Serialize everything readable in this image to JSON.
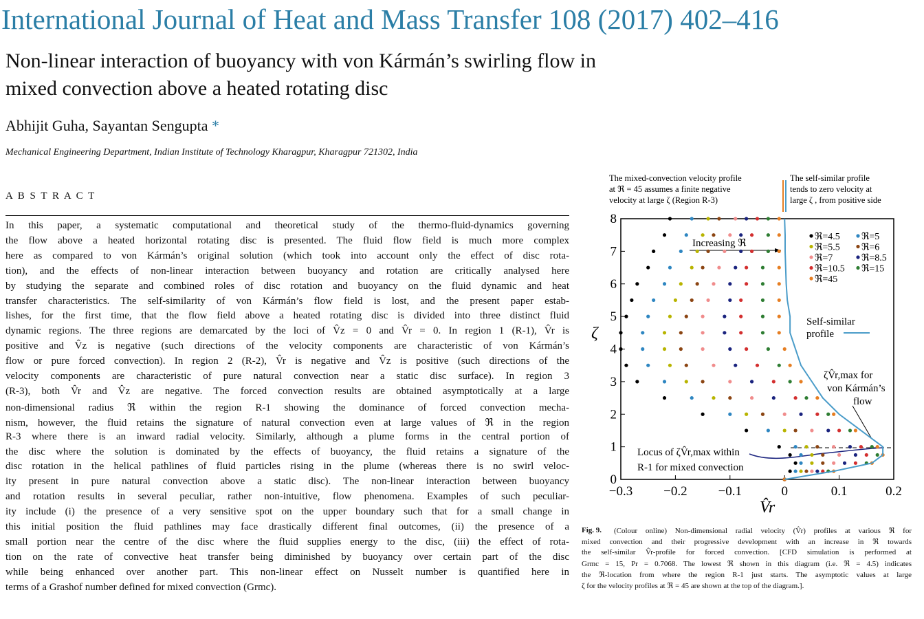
{
  "header": {
    "journal": "International Journal of Heat and Mass Transfer 108 (2017) 402–416",
    "title_lines": [
      "Non-linear interaction of buoyancy with von Kármán’s swirling flow in",
      "mixed convection above a heated rotating disc"
    ],
    "authors": "Abhijit Guha, Sayantan Sengupta",
    "corresponding_mark": "*",
    "affiliation": "Mechanical Engineering Department, Indian Institute of Technology Kharagpur, Kharagpur 721302, India"
  },
  "abstract": {
    "heading": "A B S T R A C T",
    "lines": [
      "In this paper, a systematic computational and theoretical study of the thermo-fluid-dynamics governing",
      "the flow above a heated horizontal rotating disc is presented. The fluid flow field is much more complex",
      "here as compared to von Kármán’s original solution (which took into account only the effect of disc rota-",
      "tion), and the effects of non-linear interaction between buoyancy and rotation are critically analysed here",
      "by studying the separate and combined roles of disc rotation and buoyancy on the fluid dynamic and heat",
      "transfer characteristics. The self-similarity of von Kármán’s flow field is lost, and the present paper estab-",
      "lishes, for the first time, that the flow field above a heated rotating disc is divided into three distinct fluid",
      "dynamic regions. The three regions are demarcated by the loci of V̂z = 0 and V̂r = 0. In region 1 (R-1), V̂r is",
      "positive and V̂z is negative (such directions of the velocity components are characteristic of von Kármán’s",
      "flow or pure forced convection). In region 2 (R-2), V̂r is negative and V̂z is positive (such directions of the",
      "velocity components are characteristic of pure natural convection near a static disc surface). In region 3",
      "(R-3), both V̂r and V̂z are negative. The forced convection results are obtained asymptotically at a large",
      "non-dimensional radius ℜ within the region R-1 showing the dominance of forced convection mecha-",
      "nism, however, the fluid retains the signature of natural convection even at large values of ℜ in the region",
      "R-3 where there is an inward radial velocity. Similarly, although a plume forms in the central portion of",
      "the disc where the solution is dominated by the effects of buoyancy, the fluid retains a signature of the",
      "disc rotation in the helical pathlines of fluid particles rising in the plume (whereas there is no swirl veloc-",
      "ity present in pure natural convection above a static disc). The non-linear interaction between buoyancy",
      "and rotation results in several peculiar, rather non-intuitive, flow phenomena. Examples of such peculiar-",
      "ity include (i) the presence of a very sensitive spot on the upper boundary such that for a small change in",
      "this initial position the fluid pathlines may face drastically different final outcomes, (ii) the presence of a",
      "small portion near the centre of the disc where the fluid supplies energy to the disc, (iii) the effect of rota-",
      "tion on the rate of convective heat transfer being diminished by buoyancy over certain part of the disc",
      "while being enhanced over another part. This non-linear effect on Nusselt number is quantified here in",
      "terms of a Grashof number defined for mixed convection (Grmc)."
    ]
  },
  "figure": {
    "label": "Fig. 9.",
    "caption_lines": [
      "(Colour online) Non-dimensional radial velocity (V̂r) profiles at various ℜ for",
      "mixed convection and their progressive development with an increase in ℜ towards",
      "the self-similar V̂r-profile for forced convection. [CFD simulation is performed at",
      "Grmc = 15, Pr = 0.7068. The lowest ℜ shown in this diagram (i.e. ℜ = 4.5) indicates",
      "the ℜ-location from where the region R-1 just starts. The asymptotic values at large",
      "ζ for the velocity profiles at ℜ = 45 are shown at the top of the diagram.]."
    ],
    "note_left": [
      "The mixed-convection velocity profile",
      "at ℜ = 45 assumes a finite negative",
      "velocity at large ζ   (Region R-3)"
    ],
    "note_right": [
      "The   self-similar   profile",
      "tends  to  zero  velocity  at",
      "large ζ , from positive side"
    ]
  },
  "chart_data": {
    "type": "scatter",
    "x_label": "V̂r",
    "y_label": "ζ",
    "xlim": [
      -0.3,
      0.2
    ],
    "xticks": [
      {
        "value": -0.3,
        "label": "−0.3"
      },
      {
        "value": -0.2,
        "label": "−0.2"
      },
      {
        "value": -0.1,
        "label": "−0.1"
      },
      0,
      0.1,
      0.2
    ],
    "ylim": [
      0,
      8
    ],
    "yticks": [
      0,
      1,
      2,
      3,
      4,
      5,
      6,
      7,
      8
    ],
    "annotations": [
      "Increasing ℜ",
      "ζV̂r,max for",
      "von Kármán’s",
      "flow",
      "Locus of ζV̂r,max within",
      "R-1 for mixed convection"
    ],
    "series": [
      {
        "name": "ℜ=4.5",
        "color": "#000000",
        "marker": "dot",
        "x": [
          0,
          0.01,
          0.02,
          0.01,
          -0.01,
          -0.07,
          -0.15,
          -0.22,
          -0.27,
          -0.29,
          -0.3,
          -0.3,
          -0.29,
          -0.28,
          -0.27,
          -0.25,
          -0.24,
          -0.22,
          -0.21
        ],
        "values": [
          0,
          0.25,
          0.5,
          0.75,
          1,
          1.5,
          2,
          2.5,
          3,
          3.5,
          4,
          4.5,
          5,
          5.5,
          6,
          6.5,
          7,
          7.5,
          8
        ]
      },
      {
        "name": "ℜ=5",
        "color": "#2e86c1",
        "marker": "dot",
        "x": [
          0,
          0.02,
          0.03,
          0.03,
          0.02,
          -0.03,
          -0.1,
          -0.17,
          -0.22,
          -0.25,
          -0.26,
          -0.26,
          -0.25,
          -0.24,
          -0.22,
          -0.21,
          -0.19,
          -0.18,
          -0.17
        ],
        "values": [
          0,
          0.25,
          0.5,
          0.75,
          1,
          1.5,
          2,
          2.5,
          3,
          3.5,
          4,
          4.5,
          5,
          5.5,
          6,
          6.5,
          7,
          7.5,
          8
        ]
      },
      {
        "name": "ℜ=5.5",
        "color": "#b8b400",
        "marker": "dot",
        "x": [
          0,
          0.03,
          0.05,
          0.05,
          0.04,
          0,
          -0.07,
          -0.13,
          -0.18,
          -0.21,
          -0.22,
          -0.22,
          -0.21,
          -0.2,
          -0.19,
          -0.17,
          -0.16,
          -0.15,
          -0.14
        ],
        "values": [
          0,
          0.25,
          0.5,
          0.75,
          1,
          1.5,
          2,
          2.5,
          3,
          3.5,
          4,
          4.5,
          5,
          5.5,
          6,
          6.5,
          7,
          7.5,
          8
        ]
      },
      {
        "name": "ℜ=6",
        "color": "#8b4513",
        "marker": "dot",
        "x": [
          0,
          0.04,
          0.07,
          0.07,
          0.06,
          0.02,
          -0.04,
          -0.1,
          -0.15,
          -0.18,
          -0.19,
          -0.19,
          -0.18,
          -0.17,
          -0.16,
          -0.15,
          -0.14,
          -0.13,
          -0.12
        ],
        "values": [
          0,
          0.25,
          0.5,
          0.75,
          1,
          1.5,
          2,
          2.5,
          3,
          3.5,
          4,
          4.5,
          5,
          5.5,
          6,
          6.5,
          7,
          7.5,
          8
        ]
      },
      {
        "name": "ℜ=7",
        "color": "#f08c8c",
        "marker": "dot",
        "x": [
          0,
          0.05,
          0.09,
          0.1,
          0.09,
          0.05,
          0,
          -0.06,
          -0.1,
          -0.13,
          -0.15,
          -0.15,
          -0.15,
          -0.14,
          -0.13,
          -0.12,
          -0.11,
          -0.1,
          -0.09
        ],
        "values": [
          0,
          0.25,
          0.5,
          0.75,
          1,
          1.5,
          2,
          2.5,
          3,
          3.5,
          4,
          4.5,
          5,
          5.5,
          6,
          6.5,
          7,
          7.5,
          8
        ]
      },
      {
        "name": "ℜ=8.5",
        "color": "#1a237e",
        "marker": "dot",
        "x": [
          0,
          0.06,
          0.11,
          0.13,
          0.12,
          0.08,
          0.03,
          -0.02,
          -0.06,
          -0.09,
          -0.1,
          -0.11,
          -0.11,
          -0.1,
          -0.1,
          -0.09,
          -0.08,
          -0.08,
          -0.07
        ],
        "values": [
          0,
          0.25,
          0.5,
          0.75,
          1,
          1.5,
          2,
          2.5,
          3,
          3.5,
          4,
          4.5,
          5,
          5.5,
          6,
          6.5,
          7,
          7.5,
          8
        ]
      },
      {
        "name": "ℜ=10.5",
        "color": "#d32f2f",
        "marker": "dot",
        "x": [
          0,
          0.07,
          0.13,
          0.15,
          0.14,
          0.1,
          0.06,
          0.02,
          -0.02,
          -0.05,
          -0.07,
          -0.08,
          -0.08,
          -0.08,
          -0.07,
          -0.07,
          -0.06,
          -0.06,
          -0.05
        ],
        "values": [
          0,
          0.25,
          0.5,
          0.75,
          1,
          1.5,
          2,
          2.5,
          3,
          3.5,
          4,
          4.5,
          5,
          5.5,
          6,
          6.5,
          7,
          7.5,
          8
        ]
      },
      {
        "name": "ℜ=15",
        "color": "#2e7d32",
        "marker": "dot",
        "x": [
          0,
          0.08,
          0.15,
          0.17,
          0.16,
          0.12,
          0.08,
          0.04,
          0.01,
          -0.01,
          -0.03,
          -0.04,
          -0.04,
          -0.04,
          -0.04,
          -0.04,
          -0.03,
          -0.03,
          -0.03
        ],
        "values": [
          0,
          0.25,
          0.5,
          0.75,
          1,
          1.5,
          2,
          2.5,
          3,
          3.5,
          4,
          4.5,
          5,
          5.5,
          6,
          6.5,
          7,
          7.5,
          8
        ]
      },
      {
        "name": "ℜ=45",
        "color": "#e67e22",
        "marker": "dot",
        "x": [
          0,
          0.09,
          0.16,
          0.18,
          0.17,
          0.13,
          0.09,
          0.06,
          0.03,
          0.01,
          0,
          -0.01,
          -0.01,
          -0.01,
          -0.01,
          -0.01,
          -0.01,
          -0.01,
          -0.01
        ],
        "values": [
          0,
          0.25,
          0.5,
          0.75,
          1,
          1.5,
          2,
          2.5,
          3,
          3.5,
          4,
          4.5,
          5,
          5.5,
          6,
          6.5,
          7,
          7.5,
          8
        ]
      },
      {
        "name": "Self-similar profile",
        "color": "#4a9cc9",
        "marker": "line",
        "x": [
          0,
          0.09,
          0.16,
          0.18,
          0.18,
          0.14,
          0.1,
          0.07,
          0.05,
          0.03,
          0.02,
          0.01,
          0.01,
          0.005,
          0.003,
          0.002,
          0.001,
          0.001,
          0
        ],
        "values": [
          0,
          0.25,
          0.5,
          0.75,
          1,
          1.5,
          2,
          2.5,
          3,
          3.5,
          4,
          4.5,
          5,
          5.5,
          6,
          6.5,
          7,
          7.5,
          8
        ]
      }
    ]
  }
}
